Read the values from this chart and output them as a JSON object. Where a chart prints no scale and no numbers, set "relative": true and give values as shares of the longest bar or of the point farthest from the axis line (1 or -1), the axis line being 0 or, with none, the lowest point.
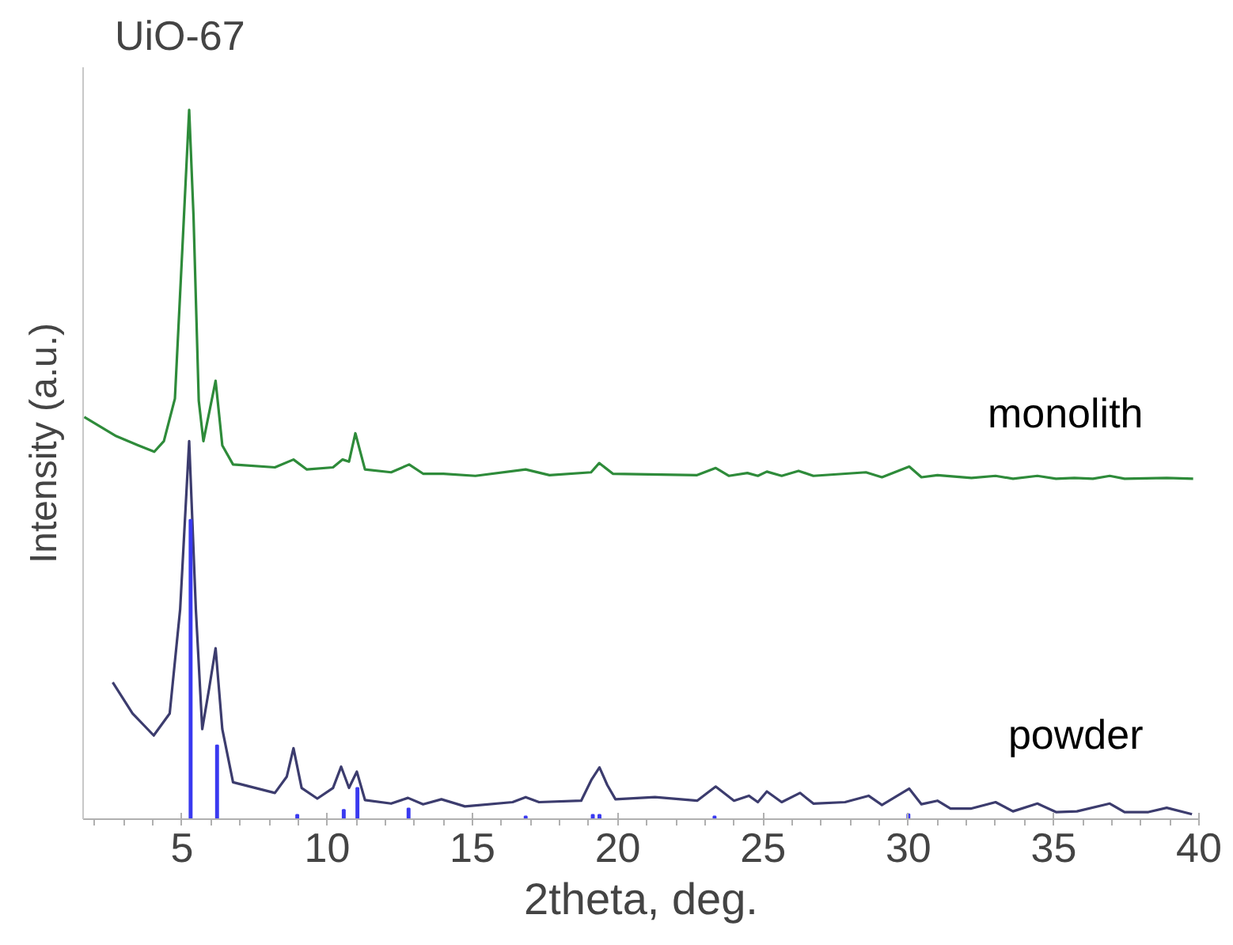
{
  "chart_data": {
    "type": "line",
    "title": "UiO-67",
    "xlabel": "2theta, deg.",
    "ylabel": "Intensity (a.u.)",
    "relative": true,
    "xlim": [
      1.6,
      40
    ],
    "xticks": [
      5,
      10,
      15,
      20,
      25,
      30,
      35,
      40
    ],
    "grid": false,
    "legend": false,
    "tick_labels": "x",
    "series": [
      {
        "name": "monolith",
        "color": "#2e8b3a",
        "x": [
          1.64,
          2.74,
          3.5,
          4.05,
          4.38,
          4.76,
          5.03,
          5.25,
          5.4,
          5.58,
          5.74,
          6.16,
          6.39,
          6.76,
          8.2,
          8.84,
          9.3,
          10.2,
          10.53,
          10.75,
          10.97,
          11.3,
          12.2,
          12.82,
          13.3,
          14.0,
          15.1,
          16.83,
          17.65,
          19.08,
          19.36,
          19.83,
          22.73,
          23.37,
          23.82,
          24.46,
          24.82,
          25.13,
          25.64,
          26.22,
          26.73,
          28.54,
          29.09,
          30.03,
          30.45,
          31.0,
          32.17,
          33.0,
          33.6,
          34.44,
          35.08,
          35.71,
          36.35,
          36.93,
          37.44,
          38.89,
          39.8
        ],
        "values": [
          0.567,
          0.54,
          0.527,
          0.518,
          0.533,
          0.593,
          0.816,
          1.0,
          0.85,
          0.59,
          0.533,
          0.618,
          0.527,
          0.5,
          0.496,
          0.507,
          0.493,
          0.496,
          0.507,
          0.504,
          0.544,
          0.493,
          0.489,
          0.5,
          0.487,
          0.487,
          0.484,
          0.493,
          0.485,
          0.489,
          0.502,
          0.487,
          0.485,
          0.495,
          0.484,
          0.488,
          0.484,
          0.49,
          0.484,
          0.491,
          0.484,
          0.489,
          0.482,
          0.497,
          0.482,
          0.485,
          0.481,
          0.484,
          0.48,
          0.484,
          0.48,
          0.481,
          0.48,
          0.484,
          0.48,
          0.481,
          0.48
        ]
      },
      {
        "name": "powder",
        "color": "#3c3c6e",
        "x": [
          2.62,
          3.3,
          4.03,
          4.58,
          4.94,
          5.25,
          5.48,
          5.7,
          5.94,
          6.16,
          6.39,
          6.76,
          8.2,
          8.61,
          8.84,
          9.12,
          9.66,
          10.2,
          10.48,
          10.75,
          11.02,
          11.3,
          12.2,
          12.78,
          13.3,
          13.93,
          14.74,
          16.38,
          16.83,
          17.29,
          18.74,
          19.1,
          19.37,
          19.64,
          19.92,
          21.28,
          22.73,
          23.37,
          24.0,
          24.51,
          24.82,
          25.13,
          25.64,
          26.27,
          26.73,
          27.82,
          28.63,
          29.09,
          30.03,
          30.45,
          31.0,
          31.45,
          32.17,
          33.0,
          33.6,
          34.44,
          35.08,
          35.8,
          36.93,
          37.44,
          38.26,
          38.89,
          39.76
        ],
        "values": [
          0.193,
          0.149,
          0.118,
          0.149,
          0.296,
          0.533,
          0.296,
          0.127,
          0.185,
          0.241,
          0.127,
          0.052,
          0.037,
          0.06,
          0.1,
          0.044,
          0.029,
          0.044,
          0.074,
          0.044,
          0.067,
          0.027,
          0.022,
          0.03,
          0.021,
          0.028,
          0.018,
          0.024,
          0.031,
          0.024,
          0.026,
          0.056,
          0.073,
          0.048,
          0.028,
          0.031,
          0.026,
          0.046,
          0.026,
          0.033,
          0.024,
          0.039,
          0.024,
          0.037,
          0.022,
          0.024,
          0.033,
          0.02,
          0.043,
          0.021,
          0.026,
          0.015,
          0.015,
          0.024,
          0.011,
          0.022,
          0.01,
          0.011,
          0.022,
          0.01,
          0.01,
          0.016,
          0.007
        ]
      },
      {
        "type": "bar",
        "color": "#3a3af0",
        "x": [
          5.3,
          6.21,
          8.97,
          10.57,
          11.04,
          12.8,
          16.83,
          19.14,
          19.37,
          23.33,
          30.0
        ],
        "values": [
          0.422,
          0.104,
          0.006,
          0.013,
          0.044,
          0.015,
          0.004,
          0.006,
          0.006,
          0.004,
          0.007
        ]
      }
    ]
  }
}
